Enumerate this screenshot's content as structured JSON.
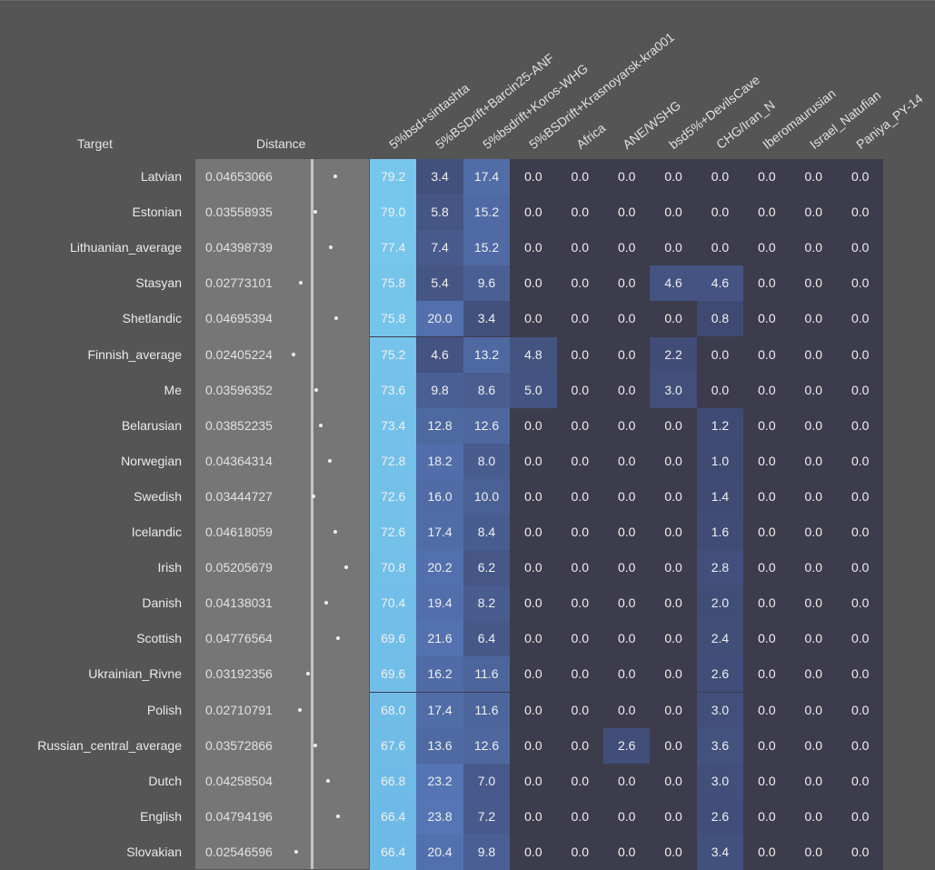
{
  "headers": {
    "target": "Target",
    "distance": "Distance"
  },
  "colors": {
    "background": "#555555",
    "distance_panel": "#767676",
    "heat_zero": "#3d3c4c",
    "heat_low": "#3f4a72",
    "heat_mid": "#4f6aa4",
    "heat_high": "#78c8ec"
  },
  "chart_data": {
    "type": "heatmap",
    "columns": [
      "5%bsd+sintashta",
      "5%BSDrift+Barcin25-ANF",
      "5%bsdrift+Koros-WHG",
      "5%BSDrift+Krasnoyarsk-kra001",
      "Africa",
      "ANE/WSHG",
      "bsd5%+DevilsCave",
      "CHG/Iran_N",
      "Iberomaurusian",
      "Israel_Natufian",
      "Paniya_PY-14"
    ],
    "distance_range": [
      0.02,
      0.06
    ],
    "rows": [
      {
        "target": "Latvian",
        "distance": "0.04653066",
        "values": [
          "79.2",
          "3.4",
          "17.4",
          "0.0",
          "0.0",
          "0.0",
          "0.0",
          "0.0",
          "0.0",
          "0.0",
          "0.0"
        ]
      },
      {
        "target": "Estonian",
        "distance": "0.03558935",
        "values": [
          "79.0",
          "5.8",
          "15.2",
          "0.0",
          "0.0",
          "0.0",
          "0.0",
          "0.0",
          "0.0",
          "0.0",
          "0.0"
        ]
      },
      {
        "target": "Lithuanian_average",
        "distance": "0.04398739",
        "values": [
          "77.4",
          "7.4",
          "15.2",
          "0.0",
          "0.0",
          "0.0",
          "0.0",
          "0.0",
          "0.0",
          "0.0",
          "0.0"
        ]
      },
      {
        "target": "Stasyan",
        "distance": "0.02773101",
        "values": [
          "75.8",
          "5.4",
          "9.6",
          "0.0",
          "0.0",
          "0.0",
          "4.6",
          "4.6",
          "0.0",
          "0.0",
          "0.0"
        ]
      },
      {
        "target": "Shetlandic",
        "distance": "0.04695394",
        "values": [
          "75.8",
          "20.0",
          "3.4",
          "0.0",
          "0.0",
          "0.0",
          "0.0",
          "0.8",
          "0.0",
          "0.0",
          "0.0"
        ]
      },
      {
        "target": "Finnish_average",
        "distance": "0.02405224",
        "values": [
          "75.2",
          "4.6",
          "13.2",
          "4.8",
          "0.0",
          "0.0",
          "2.2",
          "0.0",
          "0.0",
          "0.0",
          "0.0"
        ]
      },
      {
        "target": "Me",
        "distance": "0.03596352",
        "values": [
          "73.6",
          "9.8",
          "8.6",
          "5.0",
          "0.0",
          "0.0",
          "3.0",
          "0.0",
          "0.0",
          "0.0",
          "0.0"
        ]
      },
      {
        "target": "Belarusian",
        "distance": "0.03852235",
        "values": [
          "73.4",
          "12.8",
          "12.6",
          "0.0",
          "0.0",
          "0.0",
          "0.0",
          "1.2",
          "0.0",
          "0.0",
          "0.0"
        ]
      },
      {
        "target": "Norwegian",
        "distance": "0.04364314",
        "values": [
          "72.8",
          "18.2",
          "8.0",
          "0.0",
          "0.0",
          "0.0",
          "0.0",
          "1.0",
          "0.0",
          "0.0",
          "0.0"
        ]
      },
      {
        "target": "Swedish",
        "distance": "0.03444727",
        "values": [
          "72.6",
          "16.0",
          "10.0",
          "0.0",
          "0.0",
          "0.0",
          "0.0",
          "1.4",
          "0.0",
          "0.0",
          "0.0"
        ]
      },
      {
        "target": "Icelandic",
        "distance": "0.04618059",
        "values": [
          "72.6",
          "17.4",
          "8.4",
          "0.0",
          "0.0",
          "0.0",
          "0.0",
          "1.6",
          "0.0",
          "0.0",
          "0.0"
        ]
      },
      {
        "target": "Irish",
        "distance": "0.05205679",
        "values": [
          "70.8",
          "20.2",
          "6.2",
          "0.0",
          "0.0",
          "0.0",
          "0.0",
          "2.8",
          "0.0",
          "0.0",
          "0.0"
        ]
      },
      {
        "target": "Danish",
        "distance": "0.04138031",
        "values": [
          "70.4",
          "19.4",
          "8.2",
          "0.0",
          "0.0",
          "0.0",
          "0.0",
          "2.0",
          "0.0",
          "0.0",
          "0.0"
        ]
      },
      {
        "target": "Scottish",
        "distance": "0.04776564",
        "values": [
          "69.6",
          "21.6",
          "6.4",
          "0.0",
          "0.0",
          "0.0",
          "0.0",
          "2.4",
          "0.0",
          "0.0",
          "0.0"
        ]
      },
      {
        "target": "Ukrainian_Rivne",
        "distance": "0.03192356",
        "values": [
          "69.6",
          "16.2",
          "11.6",
          "0.0",
          "0.0",
          "0.0",
          "0.0",
          "2.6",
          "0.0",
          "0.0",
          "0.0"
        ]
      },
      {
        "target": "Polish",
        "distance": "0.02710791",
        "values": [
          "68.0",
          "17.4",
          "11.6",
          "0.0",
          "0.0",
          "0.0",
          "0.0",
          "3.0",
          "0.0",
          "0.0",
          "0.0"
        ]
      },
      {
        "target": "Russian_central_average",
        "distance": "0.03572866",
        "values": [
          "67.6",
          "13.6",
          "12.6",
          "0.0",
          "0.0",
          "2.6",
          "0.0",
          "3.6",
          "0.0",
          "0.0",
          "0.0"
        ]
      },
      {
        "target": "Dutch",
        "distance": "0.04258504",
        "values": [
          "66.8",
          "23.2",
          "7.0",
          "0.0",
          "0.0",
          "0.0",
          "0.0",
          "3.0",
          "0.0",
          "0.0",
          "0.0"
        ]
      },
      {
        "target": "English",
        "distance": "0.04794196",
        "values": [
          "66.4",
          "23.8",
          "7.2",
          "0.0",
          "0.0",
          "0.0",
          "0.0",
          "2.6",
          "0.0",
          "0.0",
          "0.0"
        ]
      },
      {
        "target": "Slovakian",
        "distance": "0.02546596",
        "values": [
          "66.4",
          "20.4",
          "9.8",
          "0.0",
          "0.0",
          "0.0",
          "0.0",
          "3.4",
          "0.0",
          "0.0",
          "0.0"
        ]
      }
    ]
  }
}
